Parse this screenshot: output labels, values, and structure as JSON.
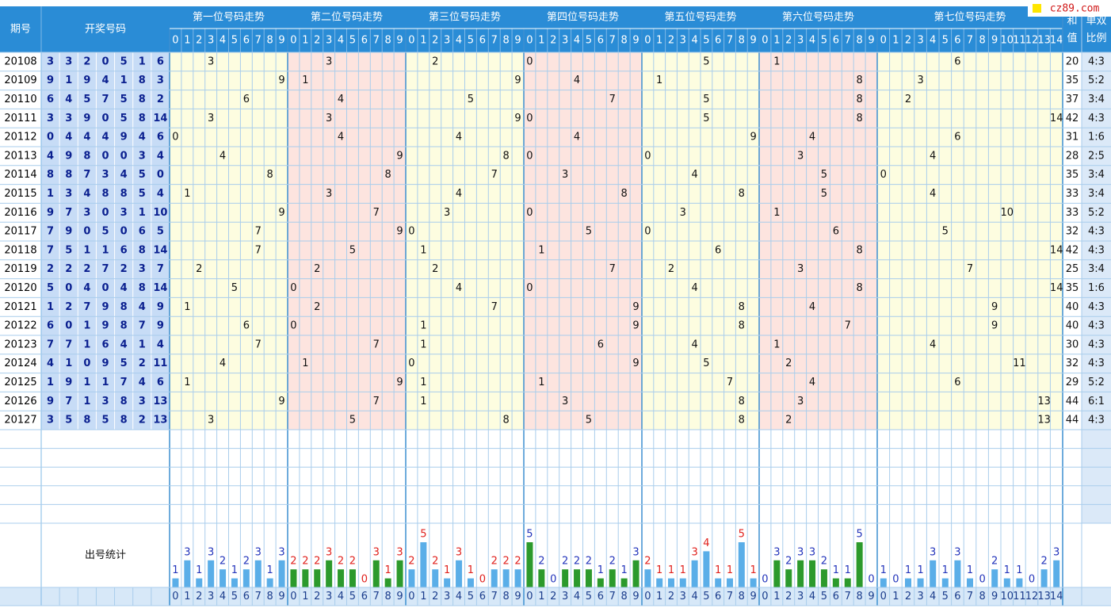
{
  "logo": "cz89.com",
  "headers": {
    "issue": "期号",
    "draw": "开奖号码",
    "sum": "和值",
    "ratio": "单双比例"
  },
  "stats_label": "出号统计",
  "sections": [
    {
      "title": "第一位号码走势",
      "columns": [
        0,
        1,
        2,
        3,
        4,
        5,
        6,
        7,
        8,
        9
      ],
      "counts": [
        1,
        3,
        1,
        3,
        2,
        1,
        2,
        3,
        1,
        3
      ]
    },
    {
      "title": "第二位号码走势",
      "columns": [
        0,
        1,
        2,
        3,
        4,
        5,
        6,
        7,
        8,
        9
      ],
      "counts": [
        2,
        2,
        2,
        3,
        2,
        2,
        0,
        3,
        1,
        3
      ]
    },
    {
      "title": "第三位号码走势",
      "columns": [
        0,
        1,
        2,
        3,
        4,
        5,
        6,
        7,
        8,
        9
      ],
      "counts": [
        2,
        5,
        2,
        1,
        3,
        1,
        0,
        2,
        2,
        2
      ]
    },
    {
      "title": "第四位号码走势",
      "columns": [
        0,
        1,
        2,
        3,
        4,
        5,
        6,
        7,
        8,
        9
      ],
      "counts": [
        5,
        2,
        0,
        2,
        2,
        2,
        1,
        2,
        1,
        3
      ]
    },
    {
      "title": "第五位号码走势",
      "columns": [
        0,
        1,
        2,
        3,
        4,
        5,
        6,
        7,
        8,
        9
      ],
      "counts": [
        2,
        1,
        1,
        1,
        3,
        4,
        1,
        1,
        5,
        1
      ]
    },
    {
      "title": "第六位号码走势",
      "columns": [
        0,
        1,
        2,
        3,
        4,
        5,
        6,
        7,
        8,
        9
      ],
      "counts": [
        0,
        3,
        2,
        3,
        3,
        2,
        1,
        1,
        5,
        0
      ]
    },
    {
      "title": "第七位号码走势",
      "columns": [
        0,
        1,
        2,
        3,
        4,
        5,
        6,
        7,
        8,
        9,
        10,
        11,
        12,
        13,
        14
      ],
      "counts": [
        1,
        0,
        1,
        1,
        3,
        1,
        3,
        1,
        0,
        2,
        1,
        1,
        0,
        2,
        3
      ]
    }
  ],
  "rows": [
    {
      "issue": "20108",
      "draw": [
        3,
        3,
        2,
        0,
        5,
        1,
        6
      ],
      "sum": 20,
      "ratio": "4:3"
    },
    {
      "issue": "20109",
      "draw": [
        9,
        1,
        9,
        4,
        1,
        8,
        3
      ],
      "sum": 35,
      "ratio": "5:2"
    },
    {
      "issue": "20110",
      "draw": [
        6,
        4,
        5,
        7,
        5,
        8,
        2
      ],
      "sum": 37,
      "ratio": "3:4"
    },
    {
      "issue": "20111",
      "draw": [
        3,
        3,
        9,
        0,
        5,
        8,
        14
      ],
      "sum": 42,
      "ratio": "4:3"
    },
    {
      "issue": "20112",
      "draw": [
        0,
        4,
        4,
        4,
        9,
        4,
        6
      ],
      "sum": 31,
      "ratio": "1:6"
    },
    {
      "issue": "20113",
      "draw": [
        4,
        9,
        8,
        0,
        0,
        3,
        4
      ],
      "sum": 28,
      "ratio": "2:5"
    },
    {
      "issue": "20114",
      "draw": [
        8,
        8,
        7,
        3,
        4,
        5,
        0
      ],
      "sum": 35,
      "ratio": "3:4"
    },
    {
      "issue": "20115",
      "draw": [
        1,
        3,
        4,
        8,
        8,
        5,
        4
      ],
      "sum": 33,
      "ratio": "3:4"
    },
    {
      "issue": "20116",
      "draw": [
        9,
        7,
        3,
        0,
        3,
        1,
        10
      ],
      "sum": 33,
      "ratio": "5:2"
    },
    {
      "issue": "20117",
      "draw": [
        7,
        9,
        0,
        5,
        0,
        6,
        5
      ],
      "sum": 32,
      "ratio": "4:3"
    },
    {
      "issue": "20118",
      "draw": [
        7,
        5,
        1,
        1,
        6,
        8,
        14
      ],
      "sum": 42,
      "ratio": "4:3"
    },
    {
      "issue": "20119",
      "draw": [
        2,
        2,
        2,
        7,
        2,
        3,
        7
      ],
      "sum": 25,
      "ratio": "3:4"
    },
    {
      "issue": "20120",
      "draw": [
        5,
        0,
        4,
        0,
        4,
        8,
        14
      ],
      "sum": 35,
      "ratio": "1:6"
    },
    {
      "issue": "20121",
      "draw": [
        1,
        2,
        7,
        9,
        8,
        4,
        9
      ],
      "sum": 40,
      "ratio": "4:3"
    },
    {
      "issue": "20122",
      "draw": [
        6,
        0,
        1,
        9,
        8,
        7,
        9
      ],
      "sum": 40,
      "ratio": "4:3"
    },
    {
      "issue": "20123",
      "draw": [
        7,
        7,
        1,
        6,
        4,
        1,
        4
      ],
      "sum": 30,
      "ratio": "4:3"
    },
    {
      "issue": "20124",
      "draw": [
        4,
        1,
        0,
        9,
        5,
        2,
        11
      ],
      "sum": 32,
      "ratio": "4:3"
    },
    {
      "issue": "20125",
      "draw": [
        1,
        9,
        1,
        1,
        7,
        4,
        6
      ],
      "sum": 29,
      "ratio": "5:2"
    },
    {
      "issue": "20126",
      "draw": [
        9,
        7,
        1,
        3,
        8,
        3,
        13
      ],
      "sum": 44,
      "ratio": "6:1"
    },
    {
      "issue": "20127",
      "draw": [
        3,
        5,
        8,
        5,
        8,
        2,
        13
      ],
      "sum": 44,
      "ratio": "4:3"
    }
  ]
}
